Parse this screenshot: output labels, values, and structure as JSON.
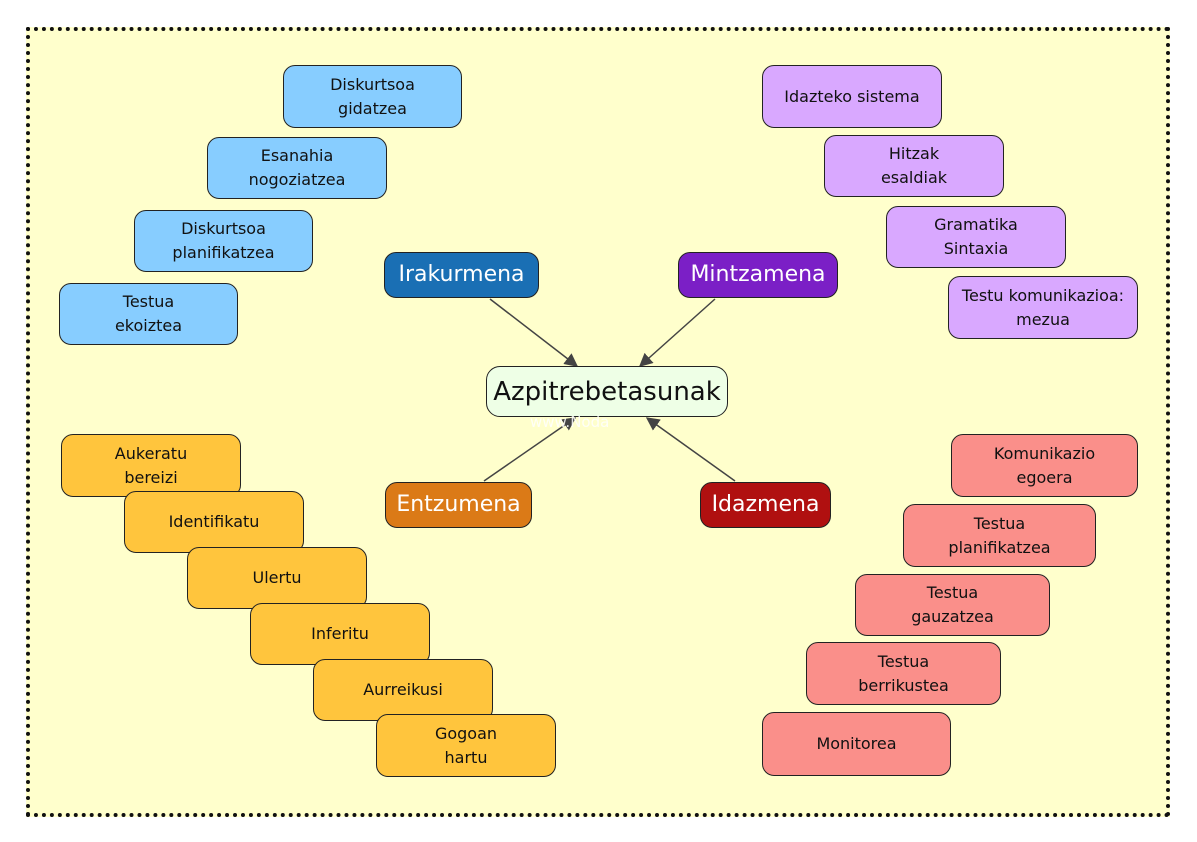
{
  "center": {
    "label": "Azpitrebetasunak"
  },
  "watermark": "www.Noda",
  "colors": {
    "frame_bg": "#ffffcc",
    "center_bg": "#eeffe6",
    "blue_box": "#87cdff",
    "purple_box": "#d9a8ff",
    "yellow_box": "#ffc53d",
    "red_box": "#fa8f8a",
    "irakurmena": "#1a6fb4",
    "mintzamena": "#7b1fc6",
    "entzumena": "#db7a17",
    "idazmena": "#b01010",
    "arrow": "#444444"
  },
  "hubs": {
    "irakurmena": "Irakurmena",
    "mintzamena": "Mintzamena",
    "entzumena": "Entzumena",
    "idazmena": "Idazmena"
  },
  "blue_group": [
    "Diskurtsoa\ngidatzea",
    "Esanahia\nnogoziatzea",
    "Diskurtsoa\nplanifikatzea",
    "Testua\nekoiztea"
  ],
  "purple_group": [
    "Idazteko sistema",
    "Hitzak\nesaldiak",
    "Gramatika\nSintaxia",
    "Testu komunikazioa:\nmezua"
  ],
  "yellow_group": [
    "Aukeratu\nbereizi",
    "Identifikatu",
    "Ulertu",
    "Inferitu",
    "Aurreikusi",
    "Gogoan\nhartu"
  ],
  "red_group": [
    "Komunikazio\negoera",
    "Testua\nplanifikatzea",
    "Testua\ngauzatzea",
    "Testua\nberrikustea",
    "Monitorea"
  ]
}
